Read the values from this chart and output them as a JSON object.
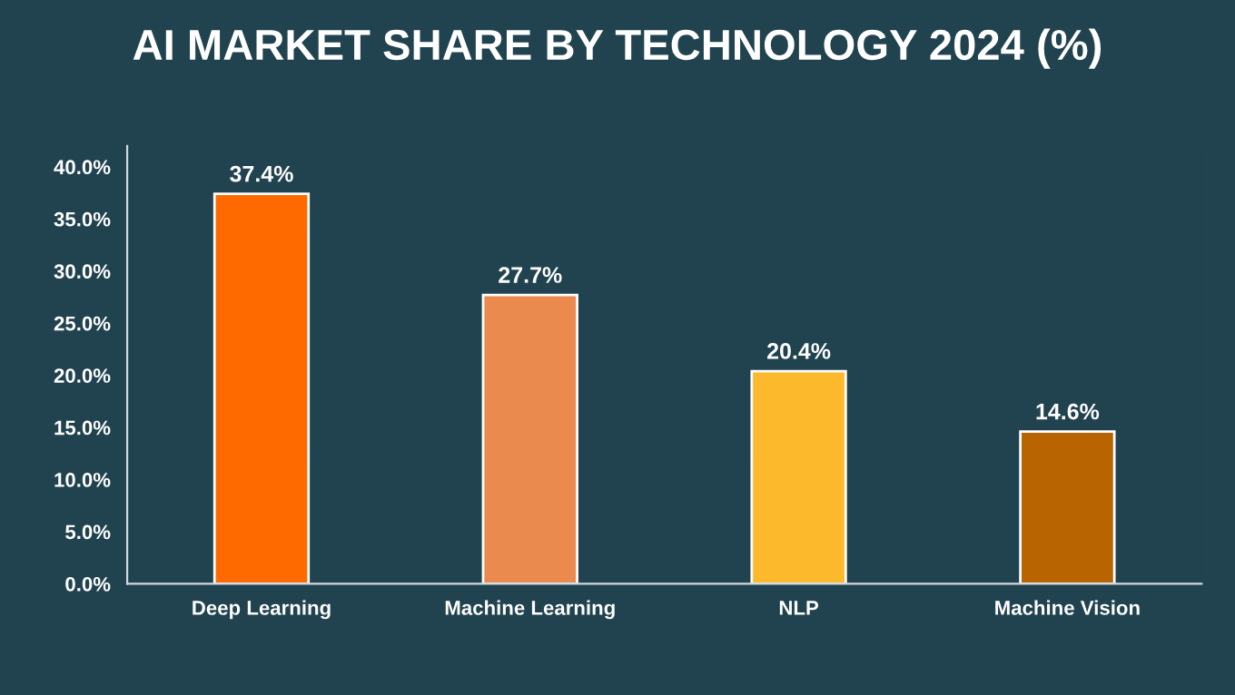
{
  "chart_data": {
    "type": "bar",
    "title": "AI MARKET SHARE BY TECHNOLOGY 2024 (%)",
    "categories": [
      "Deep Learning",
      "Machine Learning",
      "NLP",
      "Machine Vision"
    ],
    "values": [
      37.4,
      27.7,
      20.4,
      14.6
    ],
    "colors": [
      "#ff6a00",
      "#eb8a4e",
      "#fdb92c",
      "#b86400"
    ],
    "value_labels": [
      "37.4%",
      "27.7%",
      "20.4%",
      "14.6%"
    ],
    "ylim": [
      0,
      42
    ],
    "yticks": [
      {
        "value": 0,
        "label": "0.0%"
      },
      {
        "value": 5,
        "label": "5.0%"
      },
      {
        "value": 10,
        "label": "10.0%"
      },
      {
        "value": 15,
        "label": "15.0%"
      },
      {
        "value": 20,
        "label": "20.0%"
      },
      {
        "value": 25,
        "label": "25.0%"
      },
      {
        "value": 30,
        "label": "30.0%"
      },
      {
        "value": 35,
        "label": "35.0%"
      },
      {
        "value": 40,
        "label": "40.0%"
      }
    ],
    "grid": false,
    "legend": false
  }
}
